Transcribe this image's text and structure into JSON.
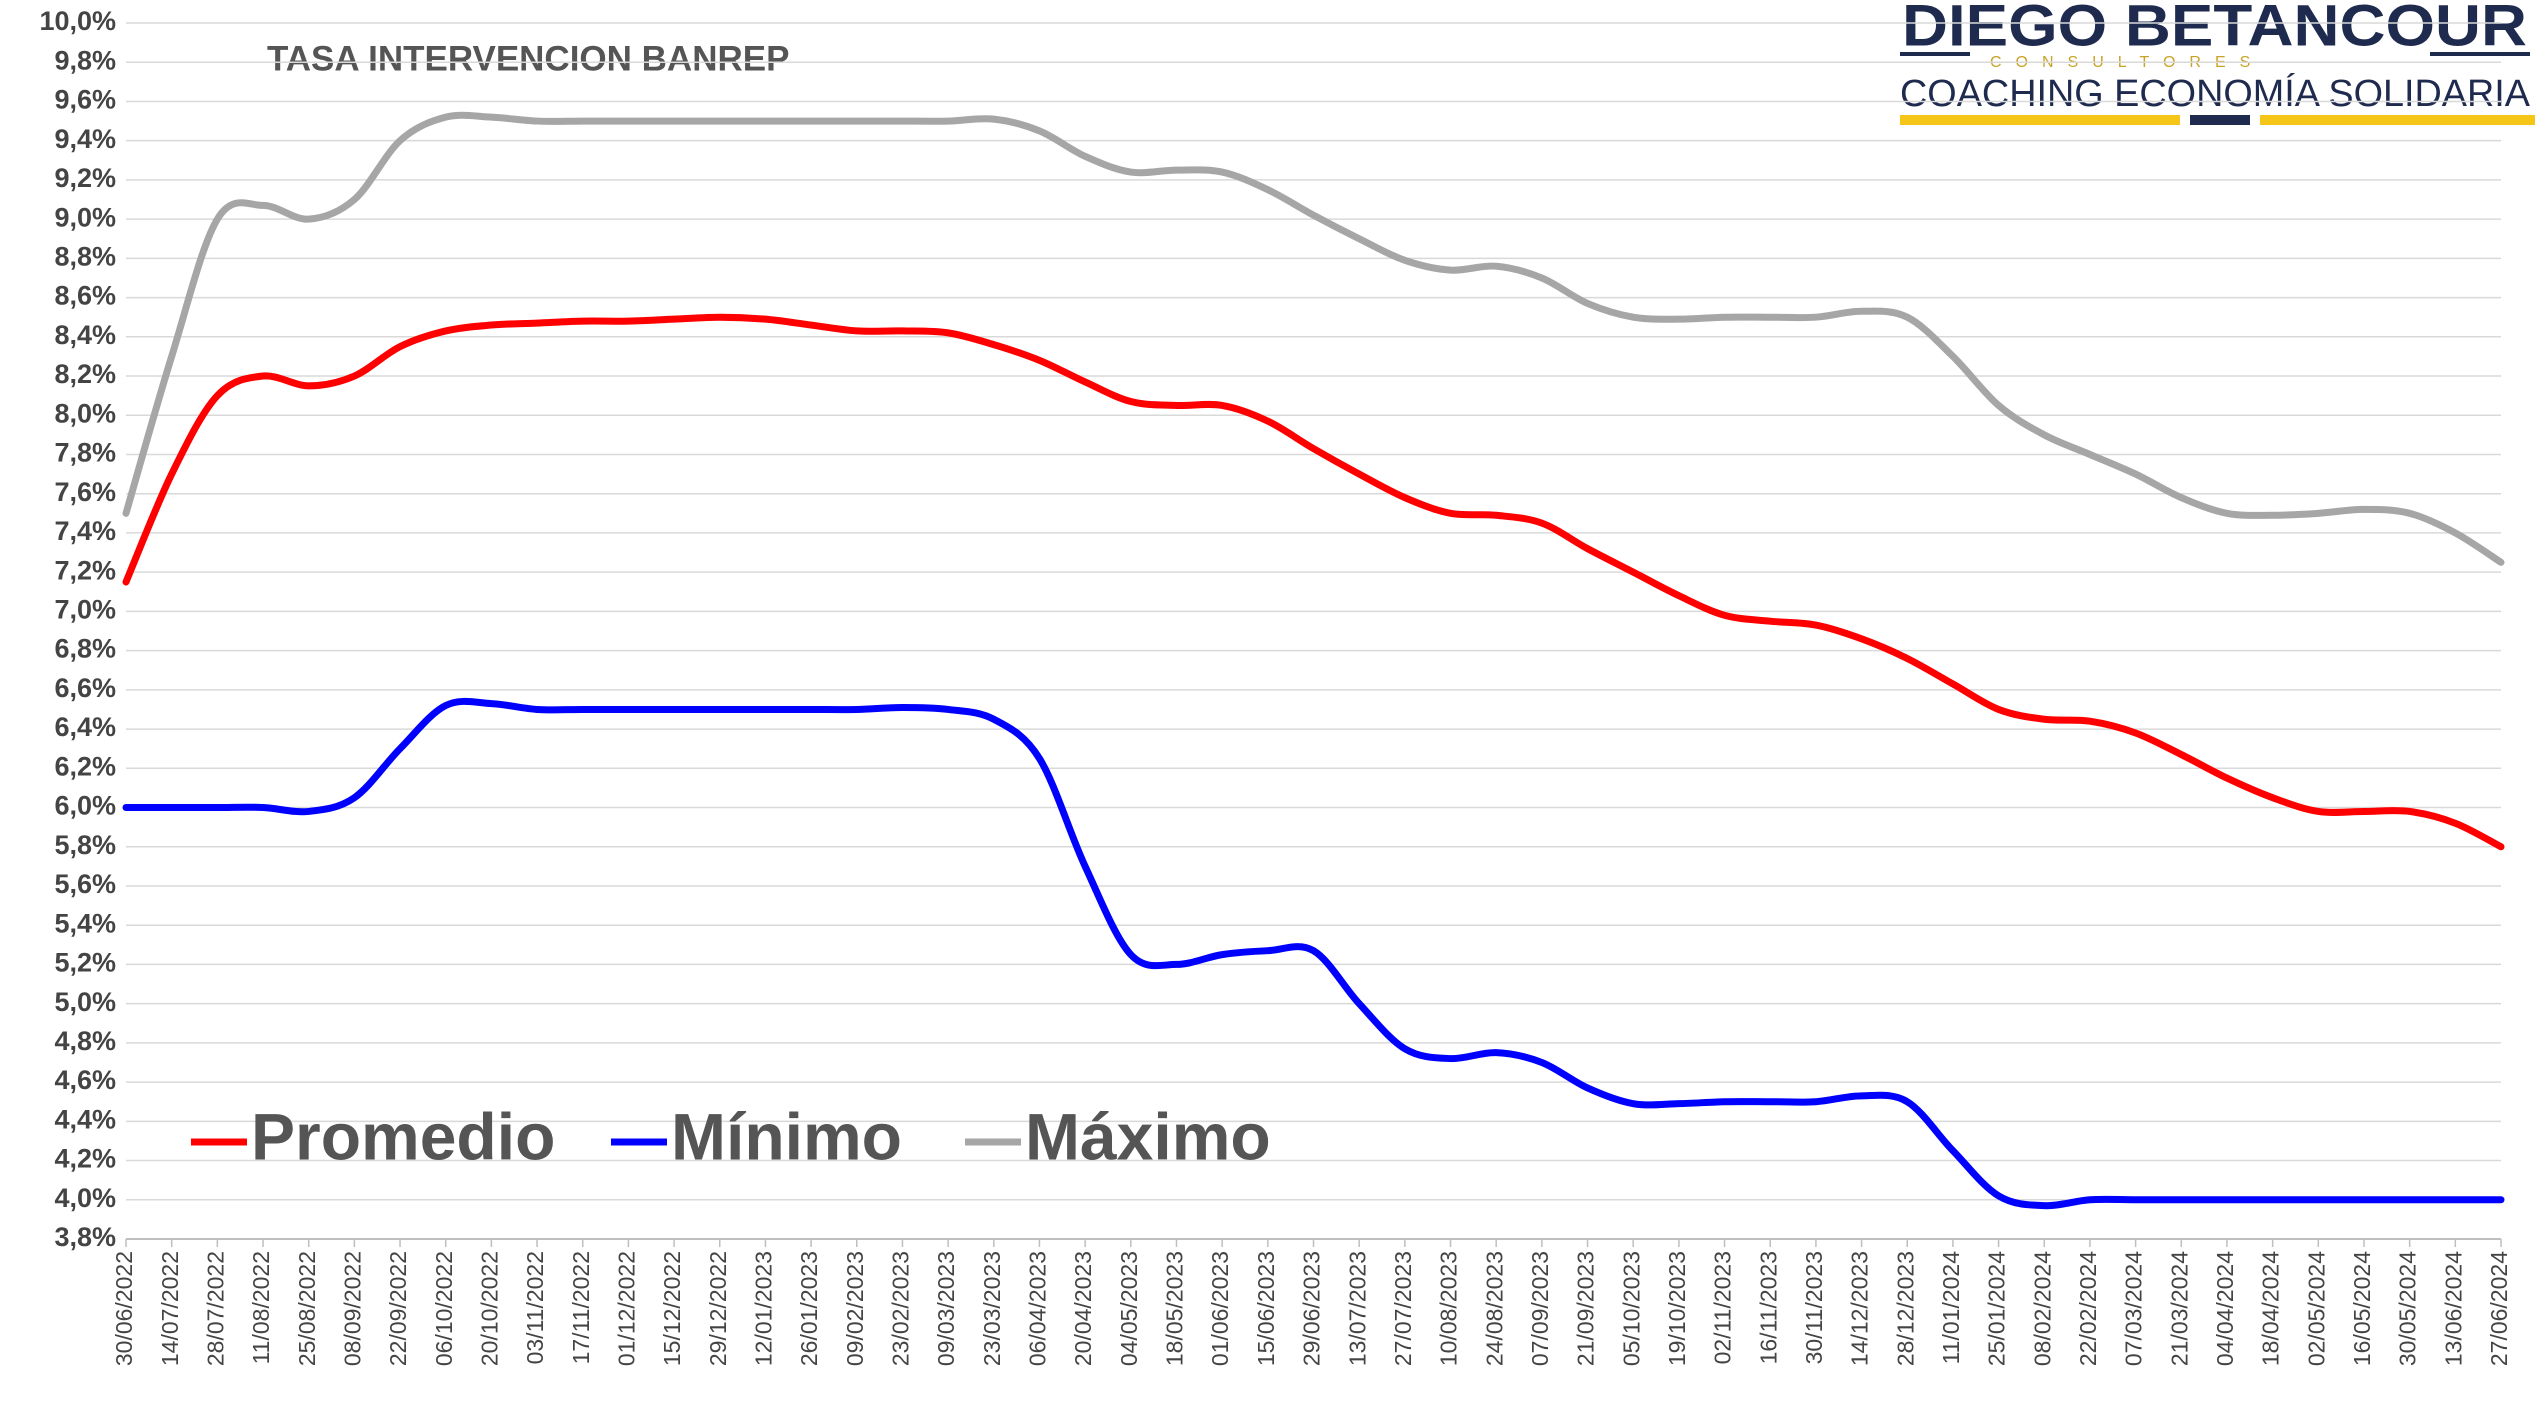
{
  "chart_data": {
    "type": "line",
    "title": "TASA INTERVENCION BANREP",
    "categories": [
      "30/06/2022",
      "14/07/2022",
      "28/07/2022",
      "11/08/2022",
      "25/08/2022",
      "08/09/2022",
      "22/09/2022",
      "06/10/2022",
      "20/10/2022",
      "03/11/2022",
      "17/11/2022",
      "01/12/2022",
      "15/12/2022",
      "29/12/2022",
      "12/01/2023",
      "26/01/2023",
      "09/02/2023",
      "23/02/2023",
      "09/03/2023",
      "23/03/2023",
      "06/04/2023",
      "20/04/2023",
      "04/05/2023",
      "18/05/2023",
      "01/06/2023",
      "15/06/2023",
      "29/06/2023",
      "13/07/2023",
      "27/07/2023",
      "10/08/2023",
      "24/08/2023",
      "07/09/2023",
      "21/09/2023",
      "05/10/2023",
      "19/10/2023",
      "02/11/2023",
      "16/11/2023",
      "30/11/2023",
      "14/12/2023",
      "28/12/2023",
      "11/01/2024",
      "25/01/2024",
      "08/02/2024",
      "22/02/2024",
      "07/03/2024",
      "21/03/2024",
      "04/04/2024",
      "18/04/2024",
      "02/05/2024",
      "16/05/2024",
      "30/05/2024",
      "13/06/2024",
      "27/06/2024"
    ],
    "series": [
      {
        "name": "Promedio",
        "color": "#ff0000",
        "values": [
          7.15,
          7.7,
          8.1,
          8.2,
          8.15,
          8.2,
          8.35,
          8.43,
          8.46,
          8.47,
          8.48,
          8.48,
          8.49,
          8.5,
          8.49,
          8.46,
          8.43,
          8.43,
          8.42,
          8.36,
          8.28,
          8.17,
          8.07,
          8.05,
          8.05,
          7.97,
          7.83,
          7.7,
          7.58,
          7.5,
          7.49,
          7.45,
          7.32,
          7.2,
          7.08,
          6.98,
          6.95,
          6.93,
          6.86,
          6.76,
          6.63,
          6.5,
          6.45,
          6.44,
          6.38,
          6.27,
          6.15,
          6.05,
          5.98,
          5.98,
          5.98,
          5.92,
          5.8
        ]
      },
      {
        "name": "Mínimo",
        "color": "#0000ff",
        "values": [
          6.0,
          6.0,
          6.0,
          6.0,
          5.98,
          6.05,
          6.3,
          6.52,
          6.53,
          6.5,
          6.5,
          6.5,
          6.5,
          6.5,
          6.5,
          6.5,
          6.5,
          6.51,
          6.5,
          6.45,
          6.25,
          5.7,
          5.25,
          5.2,
          5.25,
          5.27,
          5.27,
          5.0,
          4.77,
          4.72,
          4.75,
          4.7,
          4.57,
          4.49,
          4.49,
          4.5,
          4.5,
          4.5,
          4.53,
          4.5,
          4.25,
          4.02,
          3.97,
          4.0,
          4.0,
          4.0,
          4.0,
          4.0,
          4.0,
          4.0,
          4.0,
          4.0,
          4.0
        ]
      },
      {
        "name": "Máximo",
        "color": "#a6a6a6",
        "values": [
          7.5,
          8.3,
          9.0,
          9.07,
          9.0,
          9.1,
          9.4,
          9.52,
          9.52,
          9.5,
          9.5,
          9.5,
          9.5,
          9.5,
          9.5,
          9.5,
          9.5,
          9.5,
          9.5,
          9.51,
          9.45,
          9.32,
          9.24,
          9.25,
          9.24,
          9.15,
          9.02,
          8.9,
          8.79,
          8.74,
          8.76,
          8.7,
          8.57,
          8.5,
          8.49,
          8.5,
          8.5,
          8.5,
          8.53,
          8.5,
          8.3,
          8.05,
          7.9,
          7.8,
          7.7,
          7.58,
          7.5,
          7.49,
          7.5,
          7.52,
          7.5,
          7.4,
          7.25
        ]
      }
    ],
    "ylim": [
      3.8,
      10.0
    ],
    "yticks": [
      {
        "value": 3.8,
        "label": "3,8%"
      },
      {
        "value": 4.0,
        "label": "4,0%"
      },
      {
        "value": 4.2,
        "label": "4,2%"
      },
      {
        "value": 4.4,
        "label": "4,4%"
      },
      {
        "value": 4.6,
        "label": "4,6%"
      },
      {
        "value": 4.8,
        "label": "4,8%"
      },
      {
        "value": 5.0,
        "label": "5,0%"
      },
      {
        "value": 5.2,
        "label": "5,2%"
      },
      {
        "value": 5.4,
        "label": "5,4%"
      },
      {
        "value": 5.6,
        "label": "5,6%"
      },
      {
        "value": 5.8,
        "label": "5,8%"
      },
      {
        "value": 6.0,
        "label": "6,0%"
      },
      {
        "value": 6.2,
        "label": "6,2%"
      },
      {
        "value": 6.4,
        "label": "6,4%"
      },
      {
        "value": 6.6,
        "label": "6,6%"
      },
      {
        "value": 6.8,
        "label": "6,8%"
      },
      {
        "value": 7.0,
        "label": "7,0%"
      },
      {
        "value": 7.2,
        "label": "7,2%"
      },
      {
        "value": 7.4,
        "label": "7,4%"
      },
      {
        "value": 7.6,
        "label": "7,6%"
      },
      {
        "value": 7.8,
        "label": "7,8%"
      },
      {
        "value": 8.0,
        "label": "8,0%"
      },
      {
        "value": 8.2,
        "label": "8,2%"
      },
      {
        "value": 8.4,
        "label": "8,4%"
      },
      {
        "value": 8.6,
        "label": "8,6%"
      },
      {
        "value": 8.8,
        "label": "8,8%"
      },
      {
        "value": 9.0,
        "label": "9,0%"
      },
      {
        "value": 9.2,
        "label": "9,2%"
      },
      {
        "value": 9.4,
        "label": "9,4%"
      },
      {
        "value": 9.6,
        "label": "9,6%"
      },
      {
        "value": 9.8,
        "label": "9,8%"
      },
      {
        "value": 10.0,
        "label": "10,0%"
      }
    ],
    "grid": true,
    "smooth": true,
    "legend": "bottom-left"
  },
  "logo": {
    "name": "DIEGO BETANCOUR",
    "subtitle": "CONSULTORES",
    "tagline": "COACHING ECONOMÍA SOLIDARIA"
  }
}
